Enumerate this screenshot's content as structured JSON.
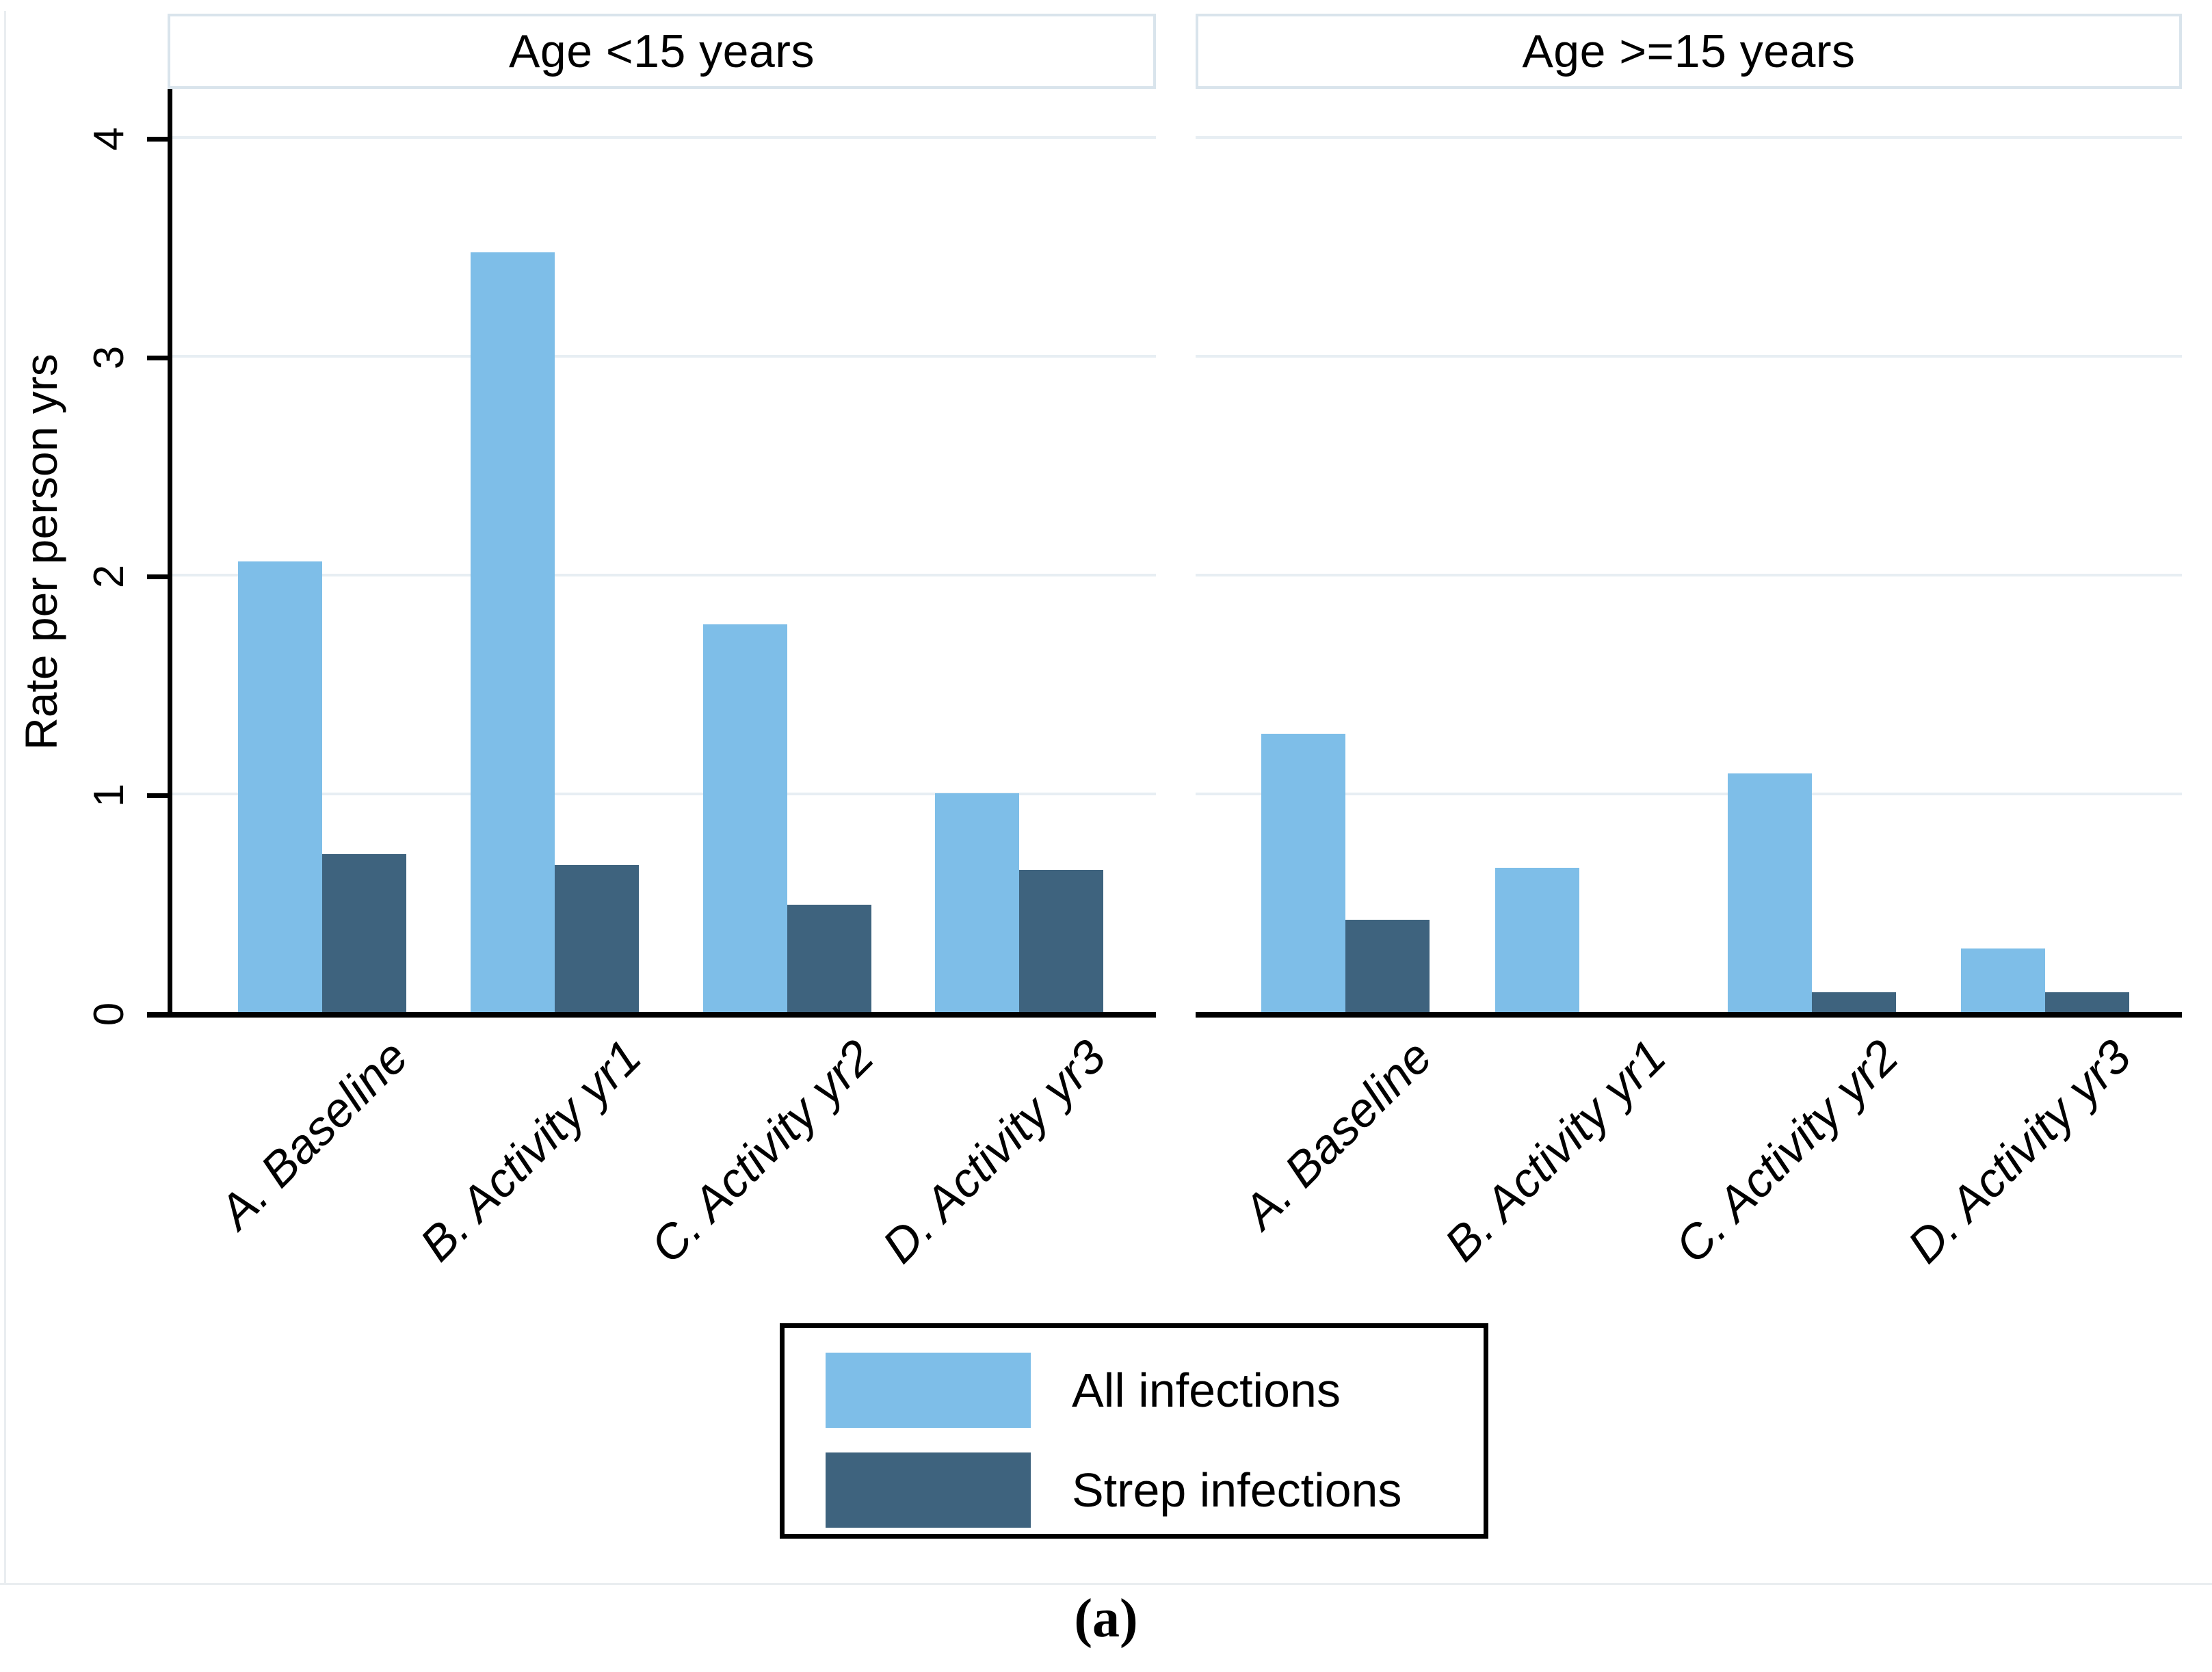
{
  "chart_data": {
    "type": "bar",
    "title": "",
    "categories": [
      "A. Baseline",
      "B. Activity yr1",
      "C. Activity yr2",
      "D. Activity yr3"
    ],
    "ylabel": "Rate per person yrs",
    "yticks": [
      0,
      1,
      2,
      3,
      4
    ],
    "ylim": [
      0,
      4.23
    ],
    "grid": true,
    "legend_position": "bottom-center",
    "legend": [
      {
        "label": "All infections",
        "color": "#7EBEE8"
      },
      {
        "label": "Strep infections",
        "color": "#3E637E"
      }
    ],
    "panels": [
      {
        "title": "Age <15 years",
        "series": [
          {
            "name": "All infections",
            "values": [
              2.07,
              3.48,
              1.78,
              1.01
            ]
          },
          {
            "name": "Strep infections",
            "values": [
              0.73,
              0.68,
              0.5,
              0.66
            ]
          }
        ]
      },
      {
        "title": "Age >=15 years",
        "series": [
          {
            "name": "All infections",
            "values": [
              1.28,
              0.67,
              1.1,
              0.3
            ]
          },
          {
            "name": "Strep infections",
            "values": [
              0.43,
              0,
              0.1,
              0.1
            ]
          }
        ]
      }
    ],
    "caption": "(a)"
  }
}
